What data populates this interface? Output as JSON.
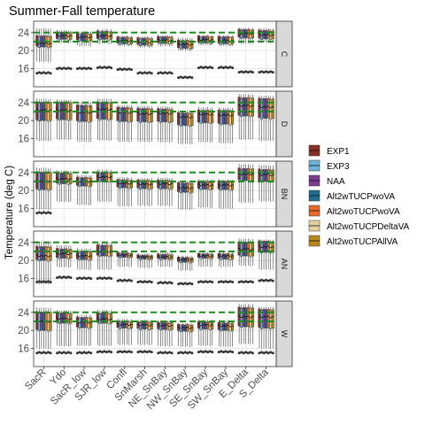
{
  "chart_data": {
    "type": "box",
    "title": "Summer-Fall temperature",
    "ylabel": "Temperature (deg C)",
    "xlabel": "",
    "ylim": [
      12,
      26.5
    ],
    "yticks": [
      16,
      20,
      24
    ],
    "reference_lines": [
      22,
      24
    ],
    "reference_line_color": "#1e8c1e",
    "categories": [
      "SacR",
      "Ydo",
      "SacR_low",
      "SJR_low",
      "Confl",
      "SnMarsh",
      "NE_SnBay",
      "NW_SnBay",
      "SE_SnBay",
      "SW_SnBay",
      "E_Delta",
      "S_Delta"
    ],
    "series": [
      {
        "name": "EXP1",
        "color": "#8b2e24"
      },
      {
        "name": "EXP3",
        "color": "#6ab4d8"
      },
      {
        "name": "NAA",
        "color": "#7d3c8f"
      },
      {
        "name": "Alt2wTUCPwoVA",
        "color": "#1c6e8c"
      },
      {
        "name": "Alt2woTUCPwoVA",
        "color": "#e8692a"
      },
      {
        "name": "Alt2woTUCPDeltaVA",
        "color": "#e3d09c"
      },
      {
        "name": "Alt2woTUCPAllVA",
        "color": "#b8871a"
      }
    ],
    "panels": [
      {
        "label": "C",
        "median": [
          21.6,
          23.3,
          23.0,
          23.3,
          22.2,
          21.9,
          22.3,
          21.4,
          22.4,
          22.2,
          23.8,
          23.5
        ],
        "q1": [
          20.8,
          22.5,
          22.2,
          22.5,
          21.5,
          21.2,
          21.6,
          20.5,
          21.7,
          21.5,
          22.8,
          22.6
        ],
        "q3": [
          23.2,
          24.0,
          23.7,
          24.2,
          22.9,
          22.7,
          23.0,
          22.2,
          23.1,
          23.0,
          24.6,
          24.4
        ],
        "min": [
          17.5,
          21.7,
          21.0,
          21.5,
          21.0,
          20.7,
          21.0,
          20.0,
          21.2,
          21.0,
          21.5,
          21.8
        ],
        "max": [
          24.9,
          24.5,
          24.2,
          24.7,
          23.3,
          23.1,
          23.4,
          22.8,
          23.4,
          23.4,
          25.0,
          24.9
        ],
        "outliers": [
          15.0,
          16.0,
          16.0,
          16.2,
          15.8,
          15.0,
          15.0,
          14.0,
          16.2,
          16.2,
          15.2,
          15.2
        ]
      },
      {
        "label": "D",
        "median": [
          22.3,
          22.3,
          21.8,
          22.5,
          21.8,
          21.5,
          21.6,
          20.8,
          21.4,
          21.2,
          23.3,
          23.0
        ],
        "q1": [
          20.0,
          20.2,
          19.8,
          20.3,
          19.8,
          19.7,
          19.7,
          18.9,
          19.5,
          19.2,
          21.0,
          20.5
        ],
        "q3": [
          24.0,
          24.0,
          23.3,
          24.0,
          22.8,
          22.6,
          22.5,
          21.6,
          22.2,
          22.2,
          25.0,
          24.8
        ],
        "min": [
          15.5,
          15.8,
          15.3,
          15.6,
          15.3,
          15.3,
          15.2,
          14.8,
          15.2,
          15.0,
          15.8,
          15.5
        ],
        "max": [
          24.8,
          24.6,
          24.0,
          24.8,
          23.4,
          23.2,
          23.1,
          22.2,
          22.9,
          22.8,
          25.8,
          25.5
        ],
        "outliers": []
      },
      {
        "label": "BN",
        "median": [
          22.0,
          22.6,
          22.0,
          23.0,
          21.6,
          21.4,
          21.5,
          20.6,
          21.2,
          21.2,
          23.6,
          23.5
        ],
        "q1": [
          20.2,
          21.5,
          21.0,
          22.0,
          20.6,
          20.4,
          20.4,
          19.6,
          20.3,
          20.2,
          22.2,
          22.0
        ],
        "q3": [
          24.0,
          23.8,
          22.8,
          24.0,
          22.3,
          22.2,
          22.2,
          21.6,
          21.9,
          22.0,
          24.8,
          24.6
        ],
        "min": [
          15.8,
          17.5,
          16.8,
          17.5,
          16.5,
          16.6,
          16.6,
          15.8,
          16.2,
          16.0,
          17.3,
          17.6
        ],
        "max": [
          25.0,
          24.4,
          23.4,
          24.6,
          22.9,
          22.7,
          22.8,
          22.0,
          22.4,
          22.4,
          25.8,
          25.6
        ],
        "outliers": [
          15.0
        ]
      },
      {
        "label": "AN",
        "median": [
          21.0,
          21.5,
          21.0,
          22.0,
          21.2,
          20.8,
          20.8,
          20.2,
          21.0,
          21.0,
          22.5,
          23.0
        ],
        "q1": [
          20.0,
          20.5,
          20.2,
          21.0,
          20.7,
          20.3,
          20.3,
          19.6,
          20.5,
          20.3,
          21.0,
          21.8
        ],
        "q3": [
          23.0,
          22.5,
          22.0,
          23.3,
          21.6,
          21.1,
          21.3,
          20.6,
          21.4,
          21.4,
          24.0,
          24.2
        ],
        "min": [
          14.8,
          18.5,
          18.0,
          18.0,
          18.6,
          18.4,
          18.6,
          17.8,
          18.6,
          18.6,
          18.8,
          18.0
        ],
        "max": [
          24.2,
          23.3,
          22.6,
          23.9,
          22.0,
          21.5,
          21.8,
          21.0,
          21.8,
          21.8,
          24.8,
          24.6
        ],
        "outliers": [
          15.2,
          16.2,
          16.0,
          16.0,
          15.5,
          15.2,
          15.0,
          14.8,
          15.2,
          15.2,
          15.2,
          15.5
        ]
      },
      {
        "label": "W",
        "median": [
          22.0,
          22.6,
          21.8,
          22.5,
          21.3,
          21.2,
          21.1,
          20.6,
          21.2,
          21.0,
          23.0,
          23.0
        ],
        "q1": [
          20.0,
          21.6,
          20.6,
          21.6,
          20.5,
          20.3,
          20.2,
          19.8,
          20.3,
          20.0,
          20.8,
          20.5
        ],
        "q3": [
          24.0,
          23.8,
          22.8,
          23.8,
          22.0,
          21.8,
          21.7,
          21.2,
          21.8,
          21.6,
          25.0,
          24.6
        ],
        "min": [
          16.0,
          16.5,
          16.6,
          16.6,
          16.8,
          16.8,
          16.5,
          16.4,
          16.6,
          16.4,
          17.0,
          16.0
        ],
        "max": [
          25.0,
          24.4,
          23.4,
          24.5,
          22.5,
          22.3,
          22.2,
          21.6,
          22.3,
          22.2,
          25.8,
          25.2
        ],
        "outliers": [
          15.0,
          15.0,
          15.0,
          15.2,
          15.2,
          15.2,
          15.0,
          15.0,
          15.2,
          15.2,
          15.0,
          15.0
        ]
      }
    ],
    "legend_position": "right",
    "grid": true
  }
}
